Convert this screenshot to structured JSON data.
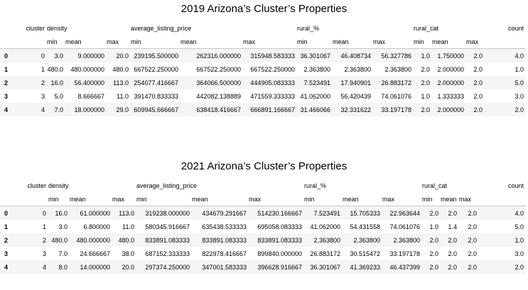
{
  "table1": {
    "title": "2019 Arizona’s Cluster’s Properties",
    "group_headers": [
      "cluster",
      "density",
      "average_listing_price",
      "rural_%",
      "rural_cat",
      "count"
    ],
    "sub_headers": [
      "min",
      "mean",
      "max",
      "min",
      "mean",
      "max",
      "min",
      "mean",
      "max",
      "min",
      "mean",
      "max"
    ],
    "rows": [
      {
        "index": "0",
        "cells": [
          "0",
          "3.0",
          "9.000000",
          "20.0",
          "239195.500000",
          "262316.000000",
          "315948.583333",
          "36.301067",
          "46.408734",
          "56.327786",
          "1.0",
          "1.750000",
          "2.0",
          "4.0"
        ]
      },
      {
        "index": "1",
        "cells": [
          "1",
          "480.0",
          "480.000000",
          "480.0",
          "667522.250000",
          "667522.250000",
          "667522.250000",
          "2.363800",
          "2.363800",
          "2.363800",
          "2.0",
          "2.000000",
          "2.0",
          "1.0"
        ]
      },
      {
        "index": "2",
        "cells": [
          "2",
          "16.0",
          "56.400000",
          "113.0",
          "254077.416667",
          "364066.500000",
          "444905.083333",
          "7.523491",
          "17.940901",
          "26.883172",
          "2.0",
          "2.000000",
          "2.0",
          "5.0"
        ]
      },
      {
        "index": "3",
        "cells": [
          "3",
          "5.0",
          "8.666667",
          "11.0",
          "391470.833333",
          "442082.138889",
          "471559.333333",
          "41.062000",
          "56.420439",
          "74.061076",
          "1.0",
          "1.333333",
          "2.0",
          "3.0"
        ]
      },
      {
        "index": "4",
        "cells": [
          "4",
          "7.0",
          "18.000000",
          "29.0",
          "609945.666667",
          "638418.416667",
          "666891.166667",
          "31.466066",
          "32.331622",
          "33.197178",
          "2.0",
          "2.000000",
          "2.0",
          "2.0"
        ]
      }
    ]
  },
  "table2": {
    "title": "2021 Arizona’s Cluster’s Properties",
    "group_headers": [
      "cluster",
      "density",
      "average_listing_price",
      "rural_%",
      "rural_cat",
      "count"
    ],
    "sub_headers": [
      "min",
      "mean",
      "max",
      "min",
      "mean",
      "max",
      "min",
      "mean",
      "max",
      "min",
      "mean",
      "max"
    ],
    "rows": [
      {
        "index": "0",
        "cells": [
          "0",
          "16.0",
          "61.000000",
          "113.0",
          "319238.000000",
          "434679.291667",
          "514230.166667",
          "7.523491",
          "15.705333",
          "22.963644",
          "2.0",
          "2.0",
          "2.0",
          "4.0"
        ]
      },
      {
        "index": "1",
        "cells": [
          "1",
          "3.0",
          "6.800000",
          "11.0",
          "580345.916667",
          "635438.533333",
          "695058.083333",
          "41.062000",
          "54.431558",
          "74.061076",
          "1.0",
          "1.4",
          "2.0",
          "5.0"
        ]
      },
      {
        "index": "2",
        "cells": [
          "2",
          "480.0",
          "480.000000",
          "480.0",
          "833891.083333",
          "833891.083333",
          "833891.083333",
          "2.363800",
          "2.363800",
          "2.363800",
          "2.0",
          "2.0",
          "2.0",
          "1.0"
        ]
      },
      {
        "index": "3",
        "cells": [
          "3",
          "7.0",
          "24.666667",
          "38.0",
          "687152.333333",
          "822978.416667",
          "899840.000000",
          "26.883172",
          "30.515472",
          "33.197178",
          "2.0",
          "2.0",
          "2.0",
          "3.0"
        ]
      },
      {
        "index": "4",
        "cells": [
          "4",
          "8.0",
          "14.000000",
          "20.0",
          "297374.250000",
          "347001.583333",
          "396628.916667",
          "36.301067",
          "41.369233",
          "46.437399",
          "2.0",
          "2.0",
          "2.0",
          "2.0"
        ]
      }
    ]
  }
}
